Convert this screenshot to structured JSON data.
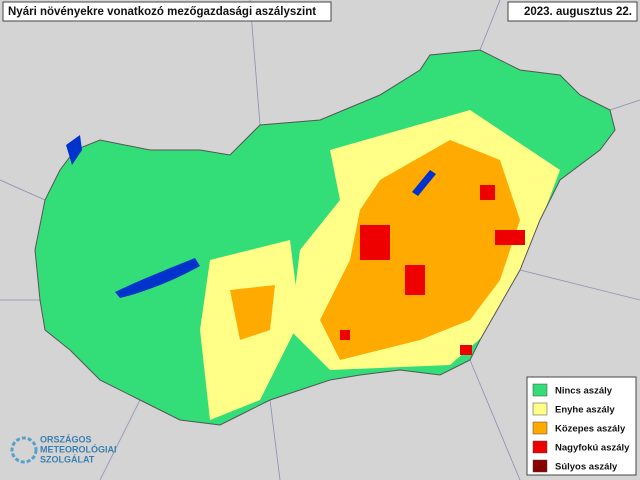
{
  "header": {
    "title": "Nyári növényekre vonatkozó mezőgazdasági aszályszint",
    "date": "2023. augusztus 22."
  },
  "legend": {
    "items": [
      {
        "label": "Nincs aszály",
        "color": "#33dd77"
      },
      {
        "label": "Enyhe aszály",
        "color": "#ffff88"
      },
      {
        "label": "Közepes aszály",
        "color": "#ffaa00"
      },
      {
        "label": "Nagyfokú aszály",
        "color": "#ee0000"
      },
      {
        "label": "Súlyos aszály",
        "color": "#880000"
      }
    ]
  },
  "logo": {
    "lines": [
      "ORSZÁGOS",
      "METEOROLÓGIAI",
      "SZOLGÁLAT"
    ]
  }
}
